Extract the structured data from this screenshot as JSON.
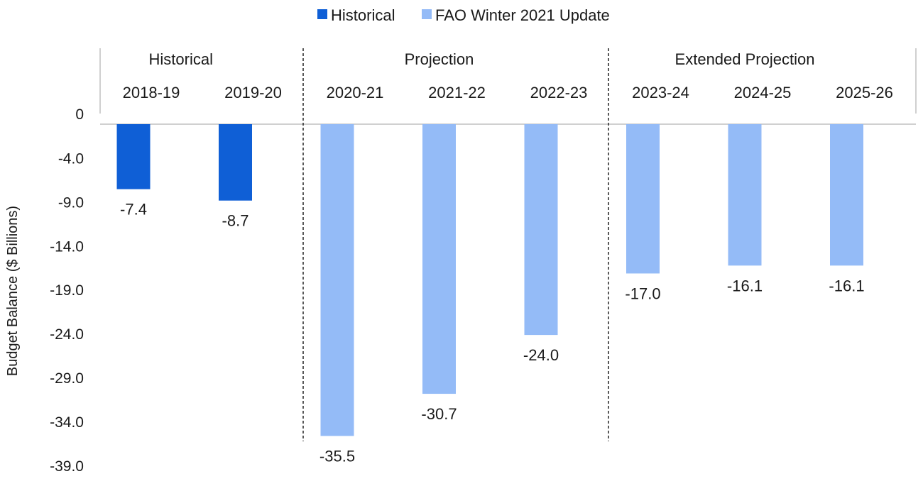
{
  "chart_data": {
    "type": "bar",
    "ylabel": "Budget Balance ($ Billions)",
    "ylim": [
      -39.0,
      0
    ],
    "yticks": [
      0,
      -4.0,
      -9.0,
      -14.0,
      -19.0,
      -24.0,
      -29.0,
      -34.0,
      -39.0
    ],
    "ytick_labels": [
      "0",
      "-4.0",
      "-9.0",
      "-14.0",
      "-19.0",
      "-24.0",
      "-29.0",
      "-34.0",
      "-39.0"
    ],
    "grid": false,
    "legend_position": "top-center",
    "legend": [
      {
        "name": "Historical",
        "color": "#0f5fd6"
      },
      {
        "name": "FAO Winter 2021 Update",
        "color": "#94bbf7"
      }
    ],
    "groups": [
      {
        "label": "Historical",
        "categories": [
          "2018-19",
          "2019-20"
        ]
      },
      {
        "label": "Projection",
        "categories": [
          "2020-21",
          "2021-22",
          "2022-23"
        ]
      },
      {
        "label": "Extended Projection",
        "categories": [
          "2023-24",
          "2024-25",
          "2025-26"
        ]
      }
    ],
    "categories": [
      "2018-19",
      "2019-20",
      "2020-21",
      "2021-22",
      "2022-23",
      "2023-24",
      "2024-25",
      "2025-26"
    ],
    "values": [
      -7.4,
      -8.7,
      -35.5,
      -30.7,
      -24.0,
      -17.0,
      -16.1,
      -16.1
    ],
    "value_labels": [
      "-7.4",
      "-8.7",
      "-35.5",
      "-30.7",
      "-24.0",
      "-17.0",
      "-16.1",
      "-16.1"
    ],
    "series_index": [
      0,
      0,
      1,
      1,
      1,
      1,
      1,
      1
    ]
  }
}
